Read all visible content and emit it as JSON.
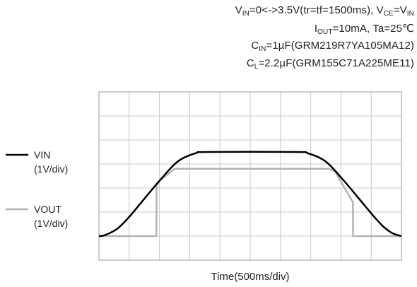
{
  "conditions": {
    "line1": {
      "vin": "V",
      "vin_sub": "IN",
      "vin_text": "=0<->3.5V(tr=tf=1500ms),  V",
      "vce_sub": "CE",
      "eq": "=V",
      "vin2_sub": "IN"
    },
    "line2": {
      "i": "I",
      "i_sub": "OUT",
      "text": "=10mA, Ta=25℃"
    },
    "line3": {
      "c": "C",
      "c_sub": "IN",
      "text": "=1µF(GRM219R7YA105MA12)"
    },
    "line4": {
      "c": "C",
      "c_sub": "L",
      "text": "=2.2µF(GRM155C71A225ME11)"
    }
  },
  "colors": {
    "vin": "#000000",
    "vout": "#b3b3b3",
    "grid": "#c8c8c8",
    "frame": "#9a9a9a"
  },
  "chart_data": {
    "type": "line",
    "xlabel": "Time(500ms/div)",
    "x_divisions": 10,
    "y_divisions": 7,
    "xlim": [
      0,
      5000
    ],
    "ylim": [
      -1,
      6
    ],
    "grid": true,
    "legend": "left",
    "series": [
      {
        "name": "VIN",
        "scale": "(1V/div)",
        "x": [
          0,
          100,
          300,
          500,
          700,
          1000,
          1300,
          1600,
          1800,
          3250,
          3450,
          3750,
          4050,
          4350,
          4550,
          4700,
          4850,
          5000
        ],
        "y": [
          0,
          0.04,
          0.3,
          0.8,
          1.4,
          2.3,
          3.1,
          3.45,
          3.5,
          3.5,
          3.45,
          3.1,
          2.3,
          1.4,
          0.8,
          0.4,
          0.12,
          0.0
        ]
      },
      {
        "name": "VOUT",
        "scale": "(1V/div)",
        "x": [
          0,
          950,
          952,
          1000,
          1250,
          1350,
          3800,
          3900,
          4200,
          4198,
          4200,
          5000
        ],
        "y": [
          0,
          0,
          2.1,
          2.3,
          2.8,
          2.8,
          2.8,
          2.7,
          1.4,
          1.4,
          0,
          0
        ]
      }
    ]
  }
}
